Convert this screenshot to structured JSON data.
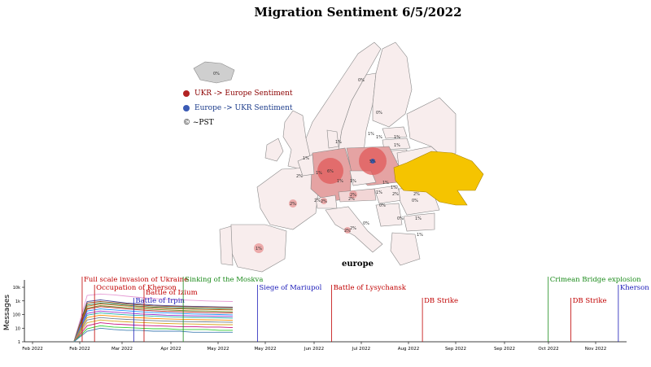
{
  "title": "Migration Sentiment 6/5/2022",
  "legend": {
    "ukr_to_europe": {
      "label": "UKR -> Europe Sentiment",
      "color": "#b22222"
    },
    "europe_to_ukr": {
      "label": "Europe -> UKR Sentiment",
      "color": "#3b5bb5"
    },
    "credit": "© ~PST"
  },
  "map": {
    "region_label": "europe",
    "highlight_color": "#f5c400",
    "country_labels": [
      "0%",
      "0%",
      "0%",
      "1%",
      "1%",
      "1%",
      "1%",
      "1%",
      "1%",
      "2%",
      "2%",
      "2%",
      "2%",
      "1%",
      "1%",
      "1%",
      "0%",
      "1%",
      "0%",
      "0%",
      "0%",
      "1%",
      "2%",
      "1%",
      "2%",
      "1%",
      "1%"
    ],
    "sentiment_circles": [
      {
        "country": "Germany",
        "label": "6%"
      },
      {
        "country": "Poland",
        "label": "5%"
      },
      {
        "country": "France",
        "label": "2%"
      },
      {
        "country": "Switzerland",
        "label": "2%"
      },
      {
        "country": "Austria",
        "label": "2%"
      },
      {
        "country": "Spain",
        "label": "1%"
      },
      {
        "country": "Romania",
        "label": "2%"
      }
    ]
  },
  "chart_data": {
    "type": "line",
    "ylabel": "Messages",
    "yscale": "log",
    "yticks": [
      "1",
      "10",
      "100",
      "1k",
      "10k"
    ],
    "ylim": [
      1,
      20000
    ],
    "xticks": [
      "Feb 2022",
      "Feb 2022",
      "Mar 2022",
      "Apr 2022",
      "May 2022",
      "May 2022",
      "Jun 2022",
      "Jul 2022",
      "Aug 2022",
      "Sep 2022",
      "Sep 2022",
      "Oct 2022",
      "Nov 2022"
    ],
    "series_note": "",
    "events": [
      {
        "label": "Full scale invasion of Ukraine",
        "date": "2022-02-24",
        "color": "#c00000"
      },
      {
        "label": "Occupation of Kherson",
        "date": "2022-03-02",
        "color": "#c00000"
      },
      {
        "label": "Battle of Izium",
        "date": "2022-03-26",
        "color": "#c00000"
      },
      {
        "label": "Battle of Irpin",
        "date": "2022-03-21",
        "color": "#1a1ab8"
      },
      {
        "label": "Sinking of the Moskva",
        "date": "2022-04-14",
        "color": "#1a8a1a"
      },
      {
        "label": "Siege of Mariupol",
        "date": "2022-05-20",
        "color": "#1a1ab8"
      },
      {
        "label": "Battle of Lysychansk",
        "date": "2022-06-25",
        "color": "#c00000"
      },
      {
        "label": "DB Strike",
        "date": "2022-08-08",
        "color": "#c00000"
      },
      {
        "label": "Crimean Bridge explosion",
        "date": "2022-10-08",
        "color": "#1a8a1a"
      },
      {
        "label": "DB Strike",
        "date": "2022-10-19",
        "color": "#c00000"
      },
      {
        "label": "Kherson counteroffensive",
        "date": "2022-11-11",
        "color": "#1a1ab8"
      }
    ],
    "series": [
      {
        "color": "#e69bd4",
        "values": [
          1,
          2500,
          3200,
          2800,
          2200,
          1800,
          1500,
          1300,
          1200,
          1100,
          1000,
          950,
          900
        ]
      },
      {
        "color": "#4a4a9a",
        "values": [
          1,
          900,
          1200,
          900,
          700,
          600,
          500,
          450,
          420,
          400,
          380,
          360,
          350
        ]
      },
      {
        "color": "#8b4513",
        "values": [
          1,
          700,
          900,
          750,
          600,
          500,
          430,
          400,
          380,
          360,
          340,
          330,
          320
        ]
      },
      {
        "color": "#2e8b57",
        "values": [
          1,
          500,
          700,
          600,
          480,
          400,
          350,
          320,
          300,
          280,
          270,
          260,
          250
        ]
      },
      {
        "color": "#d2691e",
        "values": [
          1,
          400,
          600,
          500,
          420,
          360,
          300,
          280,
          260,
          250,
          240,
          230,
          220
        ]
      },
      {
        "color": "#6b8e23",
        "values": [
          1,
          300,
          450,
          380,
          320,
          280,
          240,
          220,
          200,
          190,
          180,
          170,
          160
        ]
      },
      {
        "color": "#b22222",
        "values": [
          1,
          250,
          380,
          320,
          260,
          220,
          190,
          170,
          160,
          150,
          140,
          135,
          130
        ]
      },
      {
        "color": "#1e90ff",
        "values": [
          1,
          180,
          260,
          220,
          190,
          160,
          140,
          130,
          120,
          110,
          105,
          100,
          95
        ]
      },
      {
        "color": "#9932cc",
        "values": [
          1,
          120,
          180,
          150,
          130,
          110,
          100,
          90,
          85,
          80,
          78,
          75,
          72
        ]
      },
      {
        "color": "#20b2aa",
        "values": [
          1,
          90,
          130,
          110,
          95,
          85,
          75,
          70,
          65,
          62,
          60,
          58,
          55
        ]
      },
      {
        "color": "#ff8c00",
        "values": [
          1,
          60,
          90,
          75,
          65,
          58,
          52,
          48,
          45,
          43,
          41,
          40,
          38
        ]
      },
      {
        "color": "#708090",
        "values": [
          1,
          40,
          60,
          50,
          44,
          40,
          36,
          33,
          31,
          30,
          29,
          28,
          27
        ]
      },
      {
        "color": "#daa520",
        "values": [
          1,
          25,
          40,
          33,
          29,
          26,
          24,
          22,
          21,
          20,
          19,
          18,
          18
        ]
      },
      {
        "color": "#c71585",
        "values": [
          1,
          15,
          25,
          20,
          18,
          16,
          15,
          14,
          13,
          13,
          12,
          12,
          11
        ]
      },
      {
        "color": "#32cd32",
        "values": [
          1,
          9,
          15,
          12,
          11,
          10,
          9,
          9,
          8,
          8,
          8,
          7,
          7
        ]
      },
      {
        "color": "#4682b4",
        "values": [
          1,
          6,
          10,
          8,
          7,
          7,
          6,
          6,
          6,
          5,
          5,
          5,
          5
        ]
      }
    ]
  }
}
